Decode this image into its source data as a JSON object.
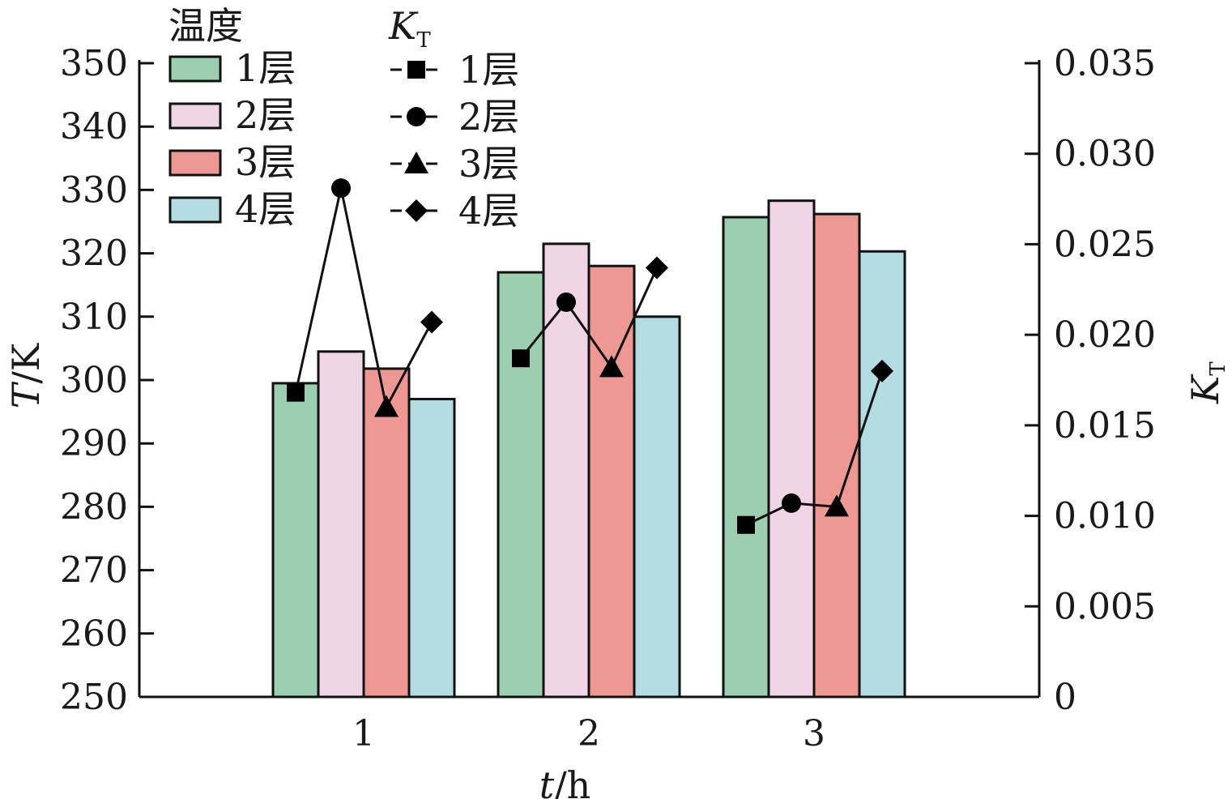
{
  "chart_data": {
    "type": "bar",
    "xlabel": "t/h",
    "xlabel_italic": "t",
    "xlabel_rest": "/h",
    "ylabel": "T/K",
    "ylabel_italic": "T",
    "ylabel_rest": "/K",
    "y2label": "K_T",
    "y2label_main": "K",
    "y2label_sub": "T",
    "categories": [
      "1",
      "2",
      "3"
    ],
    "ylim": [
      250,
      350
    ],
    "yticks": [
      "250",
      "260",
      "270",
      "280",
      "290",
      "300",
      "310",
      "320",
      "330",
      "340",
      "350"
    ],
    "y2lim": [
      0,
      0.035
    ],
    "y2ticks": [
      "0",
      "0.005",
      "0.010",
      "0.015",
      "0.020",
      "0.025",
      "0.030",
      "0.035"
    ],
    "grid": false,
    "legend_placement": "top-left",
    "bar_legend_title": "温度",
    "line_legend_title_main": "K",
    "line_legend_title_sub": "T",
    "bar_series": [
      {
        "name": "1层",
        "color": "#9ccfb0",
        "values": [
          299.5,
          317,
          325.7
        ]
      },
      {
        "name": "2层",
        "color": "#f0d5e6",
        "values": [
          304.5,
          321.5,
          328.3
        ]
      },
      {
        "name": "3层",
        "color": "#ee9893",
        "values": [
          301.8,
          318,
          326.2
        ]
      },
      {
        "name": "4层",
        "color": "#b3dde3",
        "values": [
          297,
          310,
          320.3
        ]
      }
    ],
    "line_series": [
      {
        "name": "1层",
        "marker": "square",
        "values": [
          0.0168,
          0.0187,
          0.0095
        ]
      },
      {
        "name": "2层",
        "marker": "circle",
        "values": [
          0.0281,
          0.0218,
          0.0107
        ]
      },
      {
        "name": "3层",
        "marker": "triangle",
        "values": [
          0.016,
          0.0182,
          0.0105
        ]
      },
      {
        "name": "4层",
        "marker": "diamond",
        "values": [
          0.0207,
          0.0237,
          0.018
        ]
      }
    ]
  }
}
